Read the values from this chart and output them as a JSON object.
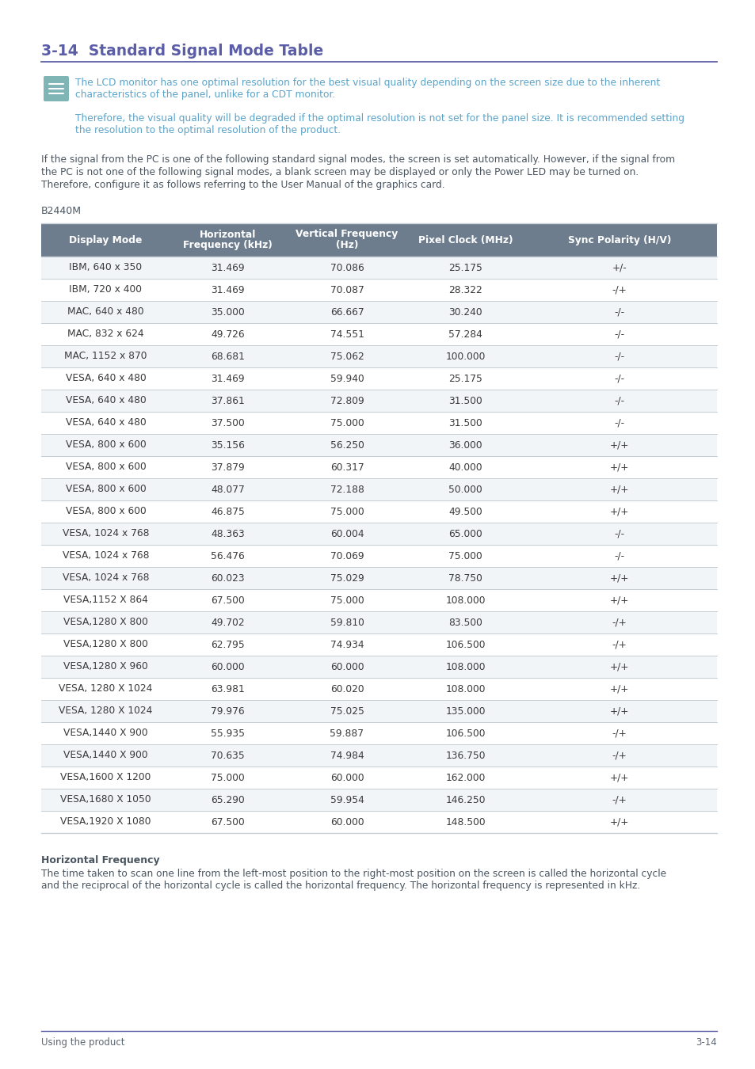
{
  "title": "3-14  Standard Signal Mode Table",
  "title_color": "#5b5ea6",
  "title_fontsize": 13.5,
  "note_color": "#5ba3c9",
  "note_line1": "The LCD monitor has one optimal resolution for the best visual quality depending on the screen size due to the inherent",
  "note_line2": "characteristics of the panel, unlike for a CDT monitor.",
  "note_line3": "Therefore, the visual quality will be degraded if the optimal resolution is not set for the panel size. It is recommended setting",
  "note_line4": "the resolution to the optimal resolution of the product.",
  "body_color": "#4a5560",
  "body_text_lines": [
    "If the signal from the PC is one of the following standard signal modes, the screen is set automatically. However, if the signal from",
    "the PC is not one of the following signal modes, a blank screen may be displayed or only the Power LED may be turned on.",
    "Therefore, configure it as follows referring to the User Manual of the graphics card."
  ],
  "model_label": "B2440M",
  "header_bg": "#6e7d8e",
  "header_text_color": "#ffffff",
  "header_cols": [
    "Display Mode",
    "Horizontal\nFrequency (kHz)",
    "Vertical Frequency\n(Hz)",
    "Pixel Clock (MHz)",
    "Sync Polarity (H/V)"
  ],
  "row_bg_even": "#f2f5f8",
  "row_bg_odd": "#ffffff",
  "row_text_color": "#3a3a3a",
  "table_data": [
    [
      "IBM, 640 x 350",
      "31.469",
      "70.086",
      "25.175",
      "+/-"
    ],
    [
      "IBM, 720 x 400",
      "31.469",
      "70.087",
      "28.322",
      "-/+"
    ],
    [
      "MAC, 640 x 480",
      "35.000",
      "66.667",
      "30.240",
      "-/-"
    ],
    [
      "MAC, 832 x 624",
      "49.726",
      "74.551",
      "57.284",
      "-/-"
    ],
    [
      "MAC, 1152 x 870",
      "68.681",
      "75.062",
      "100.000",
      "-/-"
    ],
    [
      "VESA, 640 x 480",
      "31.469",
      "59.940",
      "25.175",
      "-/-"
    ],
    [
      "VESA, 640 x 480",
      "37.861",
      "72.809",
      "31.500",
      "-/-"
    ],
    [
      "VESA, 640 x 480",
      "37.500",
      "75.000",
      "31.500",
      "-/-"
    ],
    [
      "VESA, 800 x 600",
      "35.156",
      "56.250",
      "36.000",
      "+/+"
    ],
    [
      "VESA, 800 x 600",
      "37.879",
      "60.317",
      "40.000",
      "+/+"
    ],
    [
      "VESA, 800 x 600",
      "48.077",
      "72.188",
      "50.000",
      "+/+"
    ],
    [
      "VESA, 800 x 600",
      "46.875",
      "75.000",
      "49.500",
      "+/+"
    ],
    [
      "VESA, 1024 x 768",
      "48.363",
      "60.004",
      "65.000",
      "-/-"
    ],
    [
      "VESA, 1024 x 768",
      "56.476",
      "70.069",
      "75.000",
      "-/-"
    ],
    [
      "VESA, 1024 x 768",
      "60.023",
      "75.029",
      "78.750",
      "+/+"
    ],
    [
      "VESA,1152 X 864",
      "67.500",
      "75.000",
      "108.000",
      "+/+"
    ],
    [
      "VESA,1280 X 800",
      "49.702",
      "59.810",
      "83.500",
      "-/+"
    ],
    [
      "VESA,1280 X 800",
      "62.795",
      "74.934",
      "106.500",
      "-/+"
    ],
    [
      "VESA,1280 X 960",
      "60.000",
      "60.000",
      "108.000",
      "+/+"
    ],
    [
      "VESA, 1280 X 1024",
      "63.981",
      "60.020",
      "108.000",
      "+/+"
    ],
    [
      "VESA, 1280 X 1024",
      "79.976",
      "75.025",
      "135.000",
      "+/+"
    ],
    [
      "VESA,1440 X 900",
      "55.935",
      "59.887",
      "106.500",
      "-/+"
    ],
    [
      "VESA,1440 X 900",
      "70.635",
      "74.984",
      "136.750",
      "-/+"
    ],
    [
      "VESA,1600 X 1200",
      "75.000",
      "60.000",
      "162.000",
      "+/+"
    ],
    [
      "VESA,1680 X 1050",
      "65.290",
      "59.954",
      "146.250",
      "-/+"
    ],
    [
      "VESA,1920 X 1080",
      "67.500",
      "60.000",
      "148.500",
      "+/+"
    ]
  ],
  "hfreq_bold_label": "Horizontal Frequency",
  "hfreq_body": "The time taken to scan one line from the left-most position to the right-most position on the screen is called the horizontal cycle\nand the reciprocal of the horizontal cycle is called the horizontal frequency. The horizontal frequency is represented in kHz.",
  "footer_left": "Using the product",
  "footer_right": "3-14",
  "footer_color": "#5c6670",
  "accent_color": "#5b5ea6",
  "table_line_color": "#c5cdd5",
  "icon_bg": "#7fb5b5",
  "icon_fg": "#ffffff"
}
